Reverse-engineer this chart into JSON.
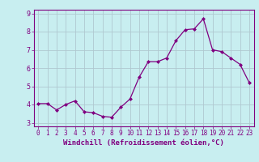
{
  "x": [
    0,
    1,
    2,
    3,
    4,
    5,
    6,
    7,
    8,
    9,
    10,
    11,
    12,
    13,
    14,
    15,
    16,
    17,
    18,
    19,
    20,
    21,
    22,
    23
  ],
  "y": [
    4.05,
    4.05,
    3.7,
    4.0,
    4.2,
    3.6,
    3.55,
    3.35,
    3.3,
    3.85,
    4.3,
    5.5,
    6.35,
    6.35,
    6.55,
    7.5,
    8.1,
    8.15,
    8.7,
    7.0,
    6.9,
    6.55,
    6.2,
    5.2
  ],
  "line_color": "#800080",
  "marker": "D",
  "marker_size": 2.0,
  "bg_color": "#c8eef0",
  "grid_color": "#b0c8d0",
  "xlabel": "Windchill (Refroidissement éolien,°C)",
  "xlabel_color": "#800080",
  "tick_color": "#800080",
  "spine_color": "#800080",
  "xlim_min": -0.5,
  "xlim_max": 23.5,
  "ylim_min": 2.8,
  "ylim_max": 9.2,
  "yticks": [
    3,
    4,
    5,
    6,
    7,
    8,
    9
  ],
  "xticks": [
    0,
    1,
    2,
    3,
    4,
    5,
    6,
    7,
    8,
    9,
    10,
    11,
    12,
    13,
    14,
    15,
    16,
    17,
    18,
    19,
    20,
    21,
    22,
    23
  ],
  "tick_fontsize": 5.5,
  "xlabel_fontsize": 6.5
}
